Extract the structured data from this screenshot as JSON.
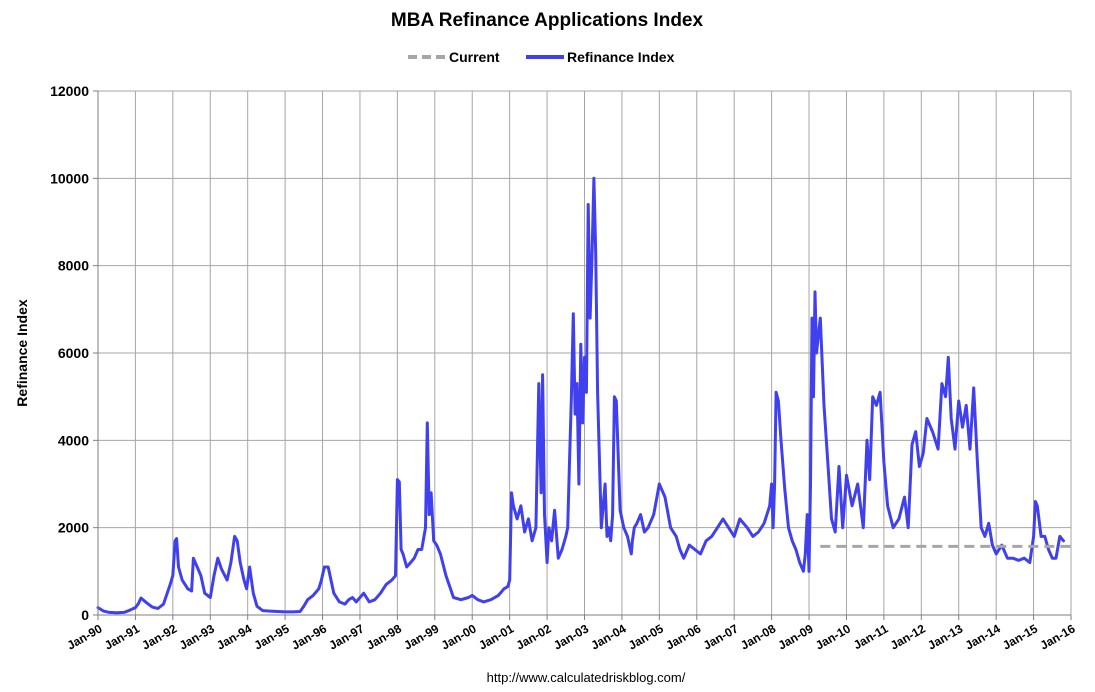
{
  "chart_data": {
    "type": "line",
    "title": "MBA Refinance Applications Index",
    "ylabel": "Refinance Index",
    "xlabel": "",
    "ylim": [
      0,
      12000
    ],
    "yticks": [
      0,
      2000,
      4000,
      6000,
      8000,
      10000,
      12000
    ],
    "xticks": [
      "Jan-90",
      "Jan-91",
      "Jan-92",
      "Jan-93",
      "Jan-94",
      "Jan-95",
      "Jan-96",
      "Jan-97",
      "Jan-98",
      "Jan-99",
      "Jan-00",
      "Jan-01",
      "Jan-02",
      "Jan-03",
      "Jan-04",
      "Jan-05",
      "Jan-06",
      "Jan-07",
      "Jan-08",
      "Jan-09",
      "Jan-10",
      "Jan-11",
      "Jan-12",
      "Jan-13",
      "Jan-14",
      "Jan-15",
      "Jan-16"
    ],
    "xlim": [
      1990.0,
      2016.0
    ],
    "grid": true,
    "legend_position": "top-center",
    "source": "http://www.calculatedriskblog.com/",
    "series": [
      {
        "name": "Current",
        "color": "#a6a6a6",
        "style": "dashed",
        "x": [
          2009.3,
          2016.0
        ],
        "y": [
          1570,
          1570
        ]
      },
      {
        "name": "Refinance Index",
        "color": "#4040ee",
        "style": "solid",
        "x": [
          1990.0,
          1990.15,
          1990.3,
          1990.5,
          1990.7,
          1990.85,
          1991.0,
          1991.08,
          1991.15,
          1991.3,
          1991.45,
          1991.6,
          1991.75,
          1991.85,
          1991.93,
          1992.0,
          1992.03,
          1992.06,
          1992.1,
          1992.15,
          1992.25,
          1992.4,
          1992.5,
          1992.55,
          1992.65,
          1992.75,
          1992.85,
          1993.0,
          1993.1,
          1993.2,
          1993.3,
          1993.45,
          1993.55,
          1993.65,
          1993.72,
          1993.8,
          1993.9,
          1993.97,
          1994.05,
          1994.15,
          1994.25,
          1994.4,
          1994.6,
          1994.8,
          1995.0,
          1995.2,
          1995.4,
          1995.5,
          1995.6,
          1995.75,
          1995.9,
          1995.97,
          1996.05,
          1996.15,
          1996.3,
          1996.45,
          1996.6,
          1996.7,
          1996.8,
          1996.9,
          1997.0,
          1997.1,
          1997.25,
          1997.4,
          1997.55,
          1997.7,
          1997.85,
          1997.95,
          1998.0,
          1998.05,
          1998.1,
          1998.15,
          1998.25,
          1998.35,
          1998.45,
          1998.55,
          1998.65,
          1998.75,
          1998.8,
          1998.85,
          1998.9,
          1998.97,
          1999.05,
          1999.15,
          1999.3,
          1999.5,
          1999.7,
          1999.9,
          2000.0,
          2000.15,
          2000.3,
          2000.5,
          2000.7,
          2000.85,
          2000.95,
          2001.0,
          2001.05,
          2001.1,
          2001.2,
          2001.3,
          2001.4,
          2001.5,
          2001.6,
          2001.7,
          2001.78,
          2001.84,
          2001.88,
          2001.93,
          2002.0,
          2002.05,
          2002.12,
          2002.2,
          2002.3,
          2002.4,
          2002.5,
          2002.55,
          2002.6,
          2002.65,
          2002.7,
          2002.75,
          2002.8,
          2002.85,
          2002.9,
          2002.95,
          2003.0,
          2003.05,
          2003.1,
          2003.15,
          2003.2,
          2003.25,
          2003.3,
          2003.35,
          2003.4,
          2003.45,
          2003.5,
          2003.55,
          2003.6,
          2003.65,
          2003.7,
          2003.75,
          2003.8,
          2003.85,
          2003.95,
          2004.05,
          2004.15,
          2004.25,
          2004.28,
          2004.33,
          2004.4,
          2004.5,
          2004.6,
          2004.7,
          2004.85,
          2005.0,
          2005.15,
          2005.3,
          2005.45,
          2005.55,
          2005.65,
          2005.8,
          2005.95,
          2006.1,
          2006.25,
          2006.4,
          2006.55,
          2006.7,
          2006.85,
          2007.0,
          2007.15,
          2007.25,
          2007.35,
          2007.5,
          2007.65,
          2007.8,
          2007.95,
          2008.0,
          2008.04,
          2008.08,
          2008.12,
          2008.18,
          2008.25,
          2008.35,
          2008.45,
          2008.55,
          2008.65,
          2008.75,
          2008.85,
          2008.9,
          2008.95,
          2009.0,
          2009.04,
          2009.08,
          2009.12,
          2009.16,
          2009.2,
          2009.25,
          2009.3,
          2009.4,
          2009.5,
          2009.6,
          2009.7,
          2009.8,
          2009.9,
          2010.0,
          2010.15,
          2010.3,
          2010.45,
          2010.55,
          2010.62,
          2010.7,
          2010.8,
          2010.9,
          2011.0,
          2011.1,
          2011.25,
          2011.4,
          2011.55,
          2011.65,
          2011.75,
          2011.85,
          2011.95,
          2012.05,
          2012.15,
          2012.3,
          2012.45,
          2012.55,
          2012.65,
          2012.72,
          2012.8,
          2012.9,
          2013.0,
          2013.1,
          2013.2,
          2013.3,
          2013.4,
          2013.5,
          2013.6,
          2013.7,
          2013.8,
          2013.9,
          2014.0,
          2014.15,
          2014.3,
          2014.45,
          2014.6,
          2014.75,
          2014.9,
          2015.0,
          2015.05,
          2015.1,
          2015.2,
          2015.3,
          2015.4,
          2015.5,
          2015.6,
          2015.7,
          2015.8
        ],
        "y": [
          170,
          90,
          60,
          50,
          60,
          110,
          170,
          260,
          390,
          280,
          180,
          150,
          250,
          500,
          700,
          900,
          1300,
          1700,
          1750,
          1100,
          800,
          600,
          550,
          1300,
          1100,
          900,
          500,
          400,
          900,
          1300,
          1050,
          800,
          1200,
          1800,
          1700,
          1200,
          800,
          600,
          1100,
          500,
          200,
          100,
          90,
          80,
          70,
          70,
          80,
          200,
          350,
          450,
          600,
          800,
          1100,
          1100,
          500,
          300,
          250,
          350,
          400,
          300,
          400,
          500,
          300,
          350,
          500,
          700,
          800,
          900,
          3100,
          3050,
          1500,
          1400,
          1100,
          1200,
          1300,
          1500,
          1500,
          2000,
          4400,
          2300,
          2800,
          1700,
          1600,
          1400,
          900,
          400,
          350,
          400,
          450,
          350,
          300,
          350,
          450,
          600,
          650,
          800,
          2800,
          2500,
          2200,
          2500,
          1900,
          2200,
          1700,
          2000,
          5300,
          2800,
          5500,
          2300,
          1200,
          2000,
          1700,
          2400,
          1300,
          1500,
          1800,
          2000,
          3500,
          5000,
          6900,
          4600,
          5300,
          3000,
          6200,
          4400,
          5900,
          5100,
          9400,
          6800,
          8200,
          10000,
          8300,
          5100,
          3500,
          2000,
          2500,
          3000,
          1800,
          2000,
          1700,
          2300,
          5000,
          4900,
          2400,
          2000,
          1800,
          1400,
          1700,
          2000,
          2100,
          2300,
          1900,
          2000,
          2300,
          3000,
          2700,
          2000,
          1800,
          1500,
          1300,
          1600,
          1500,
          1400,
          1700,
          1800,
          2000,
          2200,
          2000,
          1800,
          2200,
          2100,
          2000,
          1800,
          1900,
          2100,
          2500,
          3000,
          2000,
          3000,
          5100,
          4900,
          4000,
          2900,
          2000,
          1700,
          1500,
          1200,
          1000,
          1400,
          2300,
          1000,
          3000,
          6800,
          5000,
          7400,
          6000,
          6400,
          6800,
          4800,
          3500,
          2200,
          1900,
          3400,
          2000,
          3200,
          2500,
          3000,
          2000,
          4000,
          3100,
          5000,
          4800,
          5100,
          3500,
          2500,
          2000,
          2200,
          2700,
          2000,
          3900,
          4200,
          3400,
          3700,
          4500,
          4200,
          3800,
          5300,
          5000,
          5900,
          4500,
          3800,
          4900,
          4300,
          4800,
          3800,
          5200,
          3500,
          2000,
          1800,
          2100,
          1600,
          1400,
          1600,
          1300,
          1300,
          1250,
          1300,
          1200,
          1800,
          2600,
          2500,
          1800,
          1800,
          1500,
          1300,
          1300,
          1800,
          1700
        ]
      }
    ]
  }
}
